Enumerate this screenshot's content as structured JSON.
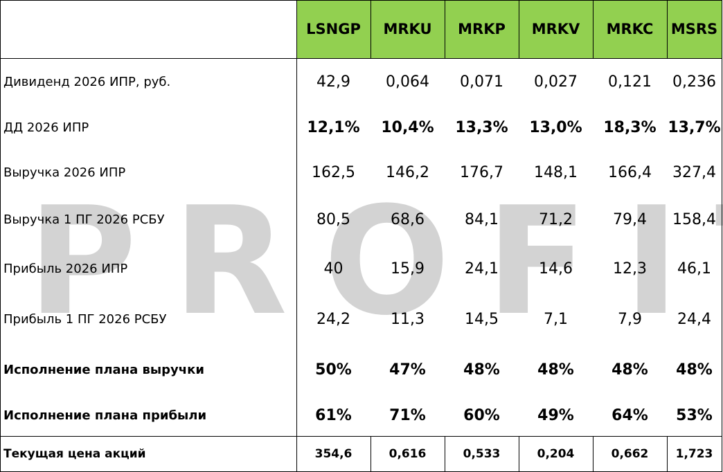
{
  "watermark": "PROFIT",
  "table": {
    "columns": [
      "LSNGP",
      "MRKU",
      "MRKP",
      "MRKV",
      "MRKC",
      "MSRS"
    ],
    "rows": [
      {
        "label": "Дивиденд 2026 ИПР, руб.",
        "values": [
          "42,9",
          "0,064",
          "0,071",
          "0,027",
          "0,121",
          "0,236"
        ]
      },
      {
        "label": "ДД 2026 ИПР",
        "values": [
          "12,1%",
          "10,4%",
          "13,3%",
          "13,0%",
          "18,3%",
          "13,7%"
        ]
      },
      {
        "label": "Выручка 2026 ИПР",
        "values": [
          "162,5",
          "146,2",
          "176,7",
          "148,1",
          "166,4",
          "327,4"
        ]
      },
      {
        "label": "Выручка 1 ПГ 2026 РСБУ",
        "values": [
          "80,5",
          "68,6",
          "84,1",
          "71,2",
          "79,4",
          "158,4"
        ]
      },
      {
        "label": "Прибыль 2026 ИПР",
        "values": [
          "40",
          "15,9",
          "24,1",
          "14,6",
          "12,3",
          "46,1"
        ]
      },
      {
        "label": "Прибыль 1 ПГ 2026 РСБУ",
        "values": [
          "24,2",
          "11,3",
          "14,5",
          "7,1",
          "7,9",
          "24,4"
        ]
      },
      {
        "label": "Исполнение плана выручки",
        "values": [
          "50%",
          "47%",
          "48%",
          "48%",
          "48%",
          "48%"
        ]
      },
      {
        "label": "Исполнение плана прибыли",
        "values": [
          "61%",
          "71%",
          "60%",
          "49%",
          "64%",
          "53%"
        ]
      },
      {
        "label": "Текущая цена акций",
        "values": [
          "354,6",
          "0,616",
          "0,533",
          "0,204",
          "0,662",
          "1,723"
        ]
      }
    ]
  }
}
